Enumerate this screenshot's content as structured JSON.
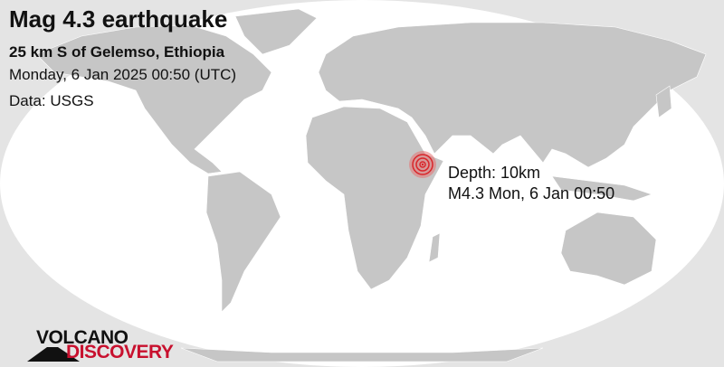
{
  "header": {
    "title": "Mag 4.3 earthquake",
    "location": "25 km S of Gelemso, Ethiopia",
    "datetime": "Monday,  6 Jan 2025 00:50 (UTC)",
    "source": "Data: USGS"
  },
  "marker": {
    "depth": "Depth: 10km",
    "summary": "M4.3 Mon,  6 Jan 00:50",
    "color": "#d9252a",
    "icon": "epicenter-rings-icon"
  },
  "logo": {
    "line1": "VOLCANO",
    "line2": "DISCOVERY",
    "accent": "#c8102e"
  },
  "colors": {
    "land": "#c6c6c6",
    "ocean": "#ffffff",
    "outside": "#e4e4e4"
  }
}
